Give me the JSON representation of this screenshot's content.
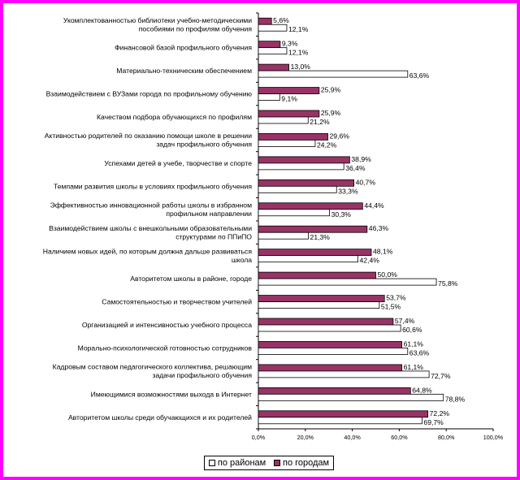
{
  "chart_data": {
    "type": "bar",
    "orientation": "horizontal",
    "categories": [
      [
        "Укомплектованностью библиотеки учебно-методическими",
        "пособиями по профилям обучения"
      ],
      [
        "Финансовой базой профильного обучения"
      ],
      [
        "Материально-техническим обеспечением"
      ],
      [
        "Взаимодействием с ВУЗами города по профильному обучению"
      ],
      [
        "Качеством подбора обучающихся по профилям"
      ],
      [
        "Активностью родителей по оказанию помощи школе в решении",
        "задач профильного обучения"
      ],
      [
        "Успехами детей в учебе, творчестве и спорте"
      ],
      [
        "Темпами развития школы в условиях профильного обучения"
      ],
      [
        "Эффективностью инновационной работы школы в избранном",
        "профильном направлении"
      ],
      [
        "Взаимодействием школы с внешкольными образовательными",
        "структурами по ППиПО"
      ],
      [
        "Наличием новых идей, по которым должна дальше развиваться",
        "школа"
      ],
      [
        "Авторитетом школы в районе, городе"
      ],
      [
        "Самостоятельностью и творчеством учителей"
      ],
      [
        "Организацией и интенсивностью учебного процесса"
      ],
      [
        "Морально-психологической готовностью сотрудников"
      ],
      [
        "Кадровым составом педагогического коллектива, решающим",
        "задачи профильного обучения"
      ],
      [
        "Имеющимися возможностями выхода в Интернет"
      ],
      [
        "Авторитетом школы среди обучающихся и их родителей"
      ]
    ],
    "series": [
      {
        "name": "по городам",
        "color": "#993366",
        "values": [
          5.6,
          9.3,
          13.0,
          25.9,
          25.9,
          29.6,
          38.9,
          40.7,
          44.4,
          46.3,
          48.1,
          50.0,
          53.7,
          57.4,
          61.1,
          61.1,
          64.8,
          72.2
        ],
        "labels": [
          "5,6%",
          "9,3%",
          "13,0%",
          "25,9%",
          "25,9%",
          "29,6%",
          "38,9%",
          "40,7%",
          "44,4%",
          "46,3%",
          "48,1%",
          "50,0%",
          "53,7%",
          "57,4%",
          "61,1%",
          "61,1%",
          "64,8%",
          "72,2%"
        ]
      },
      {
        "name": "по районам",
        "color": "#ffffff",
        "values": [
          12.1,
          12.1,
          63.6,
          9.1,
          21.2,
          24.2,
          36.4,
          33.3,
          30.3,
          21.3,
          42.4,
          75.8,
          51.5,
          60.6,
          63.6,
          72.7,
          78.8,
          69.7
        ],
        "labels": [
          "12,1%",
          "12,1%",
          "63,6%",
          "9,1%",
          "21,2%",
          "24,2%",
          "36,4%",
          "33,3%",
          "30,3%",
          "21,3%",
          "42,4%",
          "75,8%",
          "51,5%",
          "60,6%",
          "63,6%",
          "72,7%",
          "78,8%",
          "69,7%"
        ]
      }
    ],
    "xlim": [
      0,
      100
    ],
    "x_ticks": [
      "0,0%",
      "20,0%",
      "40,0%",
      "60,0%",
      "80,0%",
      "100,0%"
    ],
    "grid": false,
    "legend": {
      "position": "bottom",
      "items": [
        {
          "label": "по районам",
          "color": "#ffffff"
        },
        {
          "label": "по городам",
          "color": "#993366"
        }
      ]
    },
    "frame_color": "#ff00ff"
  }
}
